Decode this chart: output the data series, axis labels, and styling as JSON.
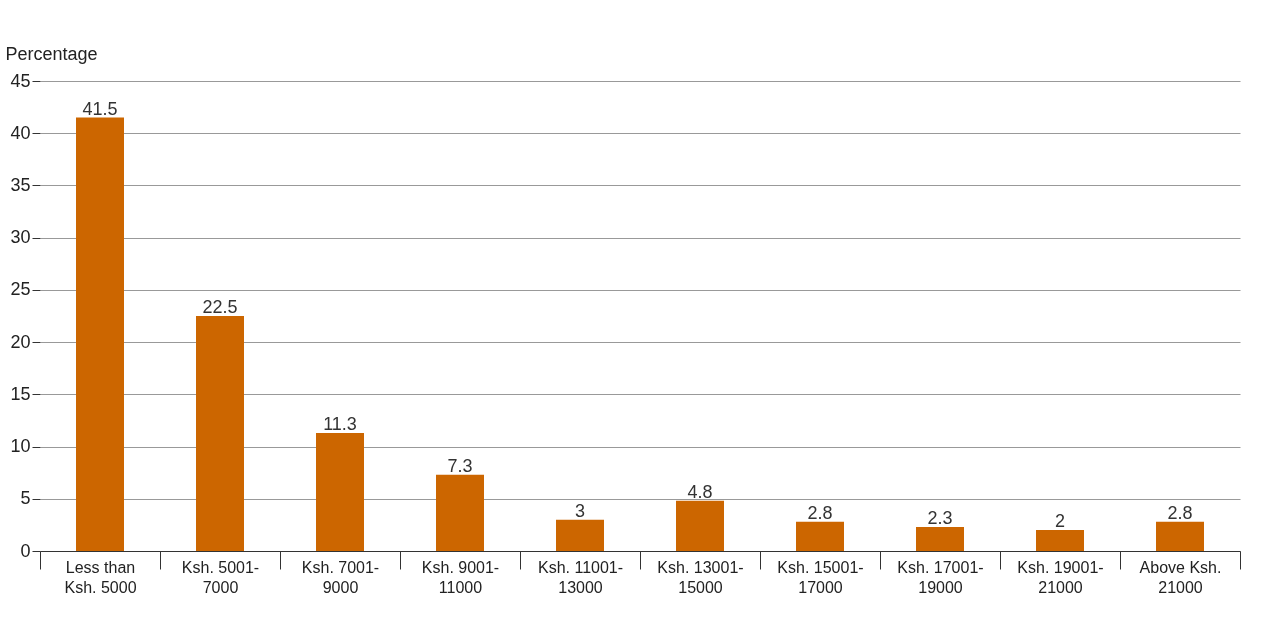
{
  "chart_data": {
    "type": "bar",
    "ylabel": "Percentage",
    "categories": [
      "Less than Ksh. 5000",
      "Ksh. 5001-7000",
      "Ksh. 7001-9000",
      "Ksh. 9001-11000",
      "Ksh. 11001-13000",
      "Ksh. 13001-15000",
      "Ksh. 15001-17000",
      "Ksh. 17001-19000",
      "Ksh. 19001-21000",
      "Above Ksh. 21000"
    ],
    "values": [
      41.5,
      22.5,
      11.3,
      7.3,
      3,
      4.8,
      2.8,
      2.3,
      2,
      2.8
    ],
    "color": "#cc6600",
    "ylim": [
      0,
      45
    ],
    "yticks": [
      0,
      5,
      10,
      15,
      20,
      25,
      30,
      35,
      40,
      45
    ],
    "grid": "y",
    "data_labels": true
  }
}
